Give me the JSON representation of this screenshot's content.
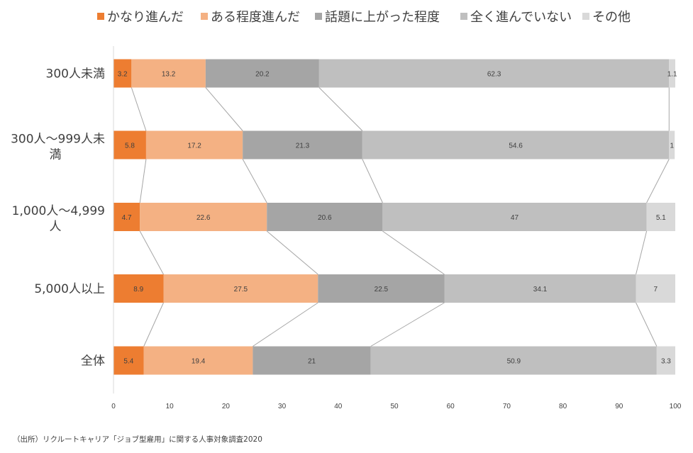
{
  "chart_data": {
    "type": "bar",
    "orientation": "horizontal",
    "stacked": true,
    "categories": [
      "300人未満",
      "300人～999人未満",
      "1,000人～4,999人",
      "5,000人以上",
      "全体"
    ],
    "series": [
      {
        "name": "かなり進んだ",
        "color": "#ED7D31",
        "values": [
          3.2,
          5.8,
          4.7,
          8.9,
          5.4
        ]
      },
      {
        "name": "ある程度進んだ",
        "color": "#F4B183",
        "values": [
          13.2,
          17.2,
          22.6,
          27.5,
          19.4
        ]
      },
      {
        "name": "話題に上がった程度",
        "color": "#A5A5A5",
        "values": [
          20.2,
          21.3,
          20.6,
          22.5,
          21
        ]
      },
      {
        "name": "全く進んでいない",
        "color": "#BFBFBF",
        "values": [
          62.3,
          54.6,
          47,
          34.1,
          50.9
        ]
      },
      {
        "name": "その他",
        "color": "#D9D9D9",
        "values": [
          1.1,
          1,
          5.1,
          7,
          3.3
        ]
      }
    ],
    "xlim": [
      0,
      100
    ],
    "xticks": [
      "0",
      "10",
      "20",
      "30",
      "40",
      "50",
      "60",
      "70",
      "80",
      "90",
      "100"
    ],
    "legend_position": "top",
    "series_lines": true,
    "grid": false
  },
  "source_note": "（出所）リクルートキャリア「ジョブ型雇用」に関する人事対象調査2020"
}
